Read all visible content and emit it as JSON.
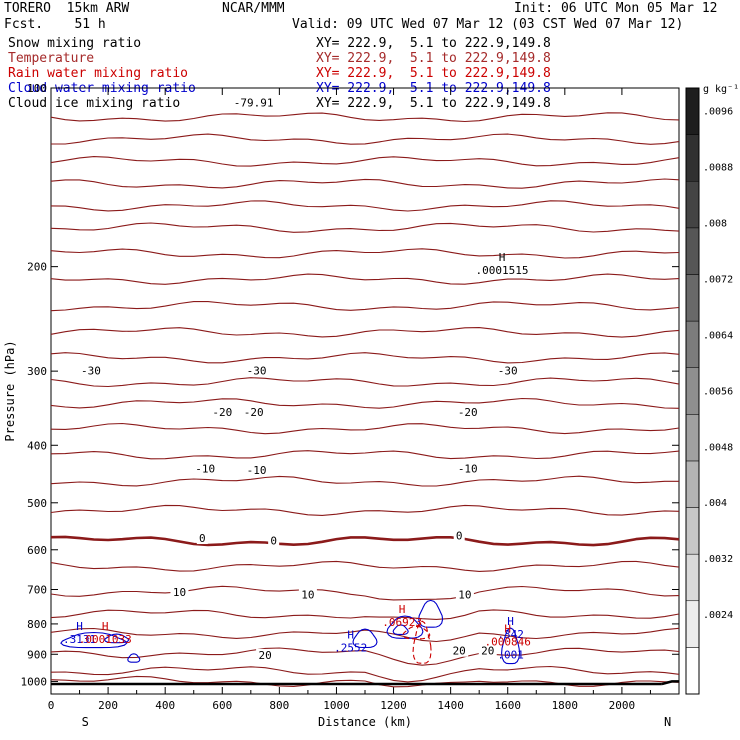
{
  "header": {
    "model": "TORERO  15km ARW",
    "forecast": "Fcst.    51 h",
    "center": "NCAR/MMM",
    "init": "Init: 06 UTC Mon 05 Mar 12",
    "valid": "Valid: 09 UTC Wed 07 Mar 12 (03 CST Wed 07 Mar 12)"
  },
  "fields": [
    {
      "name": "Snow mixing ratio",
      "xy": "XY= 222.9,  5.1 to 222.9,149.8",
      "color": "#000000"
    },
    {
      "name": "Temperature",
      "xy": "XY= 222.9,  5.1 to 222.9,149.8",
      "color": "#a52a2a"
    },
    {
      "name": "Rain water mixing ratio",
      "xy": "XY= 222.9,  5.1 to 222.9,149.8",
      "color": "#cc0000"
    },
    {
      "name": "Cloud water mixing ratio",
      "xy": "XY= 222.9,  5.1 to 222.9,149.8",
      "color": "#0000cc"
    },
    {
      "name": "Cloud ice mixing ratio",
      "xy": "XY= 222.9,  5.1 to 222.9,149.8",
      "color": "#000000"
    }
  ],
  "colorbar": {
    "unit": "g kg⁻¹",
    "ticks": [
      ".0024",
      ".0032",
      ".004",
      ".0048",
      ".0056",
      ".0064",
      ".0072",
      ".008",
      ".0088",
      ".0096"
    ]
  },
  "chart_data": {
    "type": "contour cross-section",
    "xlabel": "Distance (km)",
    "ylabel": "Pressure (hPa)",
    "x_ticks": [
      "0",
      "200",
      "400",
      "600",
      "800",
      "1000",
      "1200",
      "1400",
      "1600",
      "1800",
      "2000"
    ],
    "y_ticks": [
      "100",
      "200",
      "300",
      "400",
      "500",
      "600",
      "700",
      "800",
      "900",
      "1000"
    ],
    "xlim": [
      0,
      2200
    ],
    "ylim": [
      1050,
      100
    ],
    "y_scale": "log",
    "end_labels": {
      "left": "S",
      "right": "N"
    },
    "temperature_contour_labels": [
      {
        "text": "-79.91",
        "x": 710,
        "p": 107
      },
      {
        "text": "-30",
        "x": 140,
        "p": 303
      },
      {
        "text": "-30",
        "x": 720,
        "p": 303
      },
      {
        "text": "-30",
        "x": 1600,
        "p": 303
      },
      {
        "text": "-20",
        "x": 600,
        "p": 356
      },
      {
        "text": "-20",
        "x": 710,
        "p": 356
      },
      {
        "text": "-20",
        "x": 1460,
        "p": 356
      },
      {
        "text": "-10",
        "x": 540,
        "p": 443
      },
      {
        "text": "-10",
        "x": 720,
        "p": 445
      },
      {
        "text": "-10",
        "x": 1460,
        "p": 443
      },
      {
        "text": "0",
        "x": 530,
        "p": 580
      },
      {
        "text": "0",
        "x": 780,
        "p": 585
      },
      {
        "text": "0",
        "x": 1430,
        "p": 574
      },
      {
        "text": "10",
        "x": 450,
        "p": 715
      },
      {
        "text": "10",
        "x": 900,
        "p": 722
      },
      {
        "text": "10",
        "x": 1450,
        "p": 722
      },
      {
        "text": "20",
        "x": 750,
        "p": 913
      },
      {
        "text": "20",
        "x": 1430,
        "p": 898
      },
      {
        "text": "20",
        "x": 1530,
        "p": 898
      }
    ],
    "highs": [
      {
        "label": "H",
        "value": ".0001515",
        "x": 1580,
        "p": 205,
        "field": "Snow mixing ratio"
      },
      {
        "label": "H",
        "value": ".3131",
        "x": 100,
        "p": 858,
        "field": "Cloud water mixing ratio"
      },
      {
        "label": "H",
        "value": ".0001033",
        "x": 190,
        "p": 858,
        "field": "Rain water mixing ratio"
      },
      {
        "label": "H",
        "value": ".2552",
        "x": 1050,
        "p": 887,
        "field": "Cloud water mixing ratio"
      },
      {
        "label": "H",
        "value": ".06923",
        "x": 1230,
        "p": 803,
        "field": "Rain water mixing ratio"
      },
      {
        "label": "H",
        "value": ".342",
        "x": 1610,
        "p": 842,
        "field": "Cloud water mixing ratio"
      },
      {
        "label": "H",
        "value": ".000846",
        "x": 1600,
        "p": 867,
        "field": "Rain water mixing ratio"
      },
      {
        "label": "",
        "value": ".001",
        "x": 1610,
        "p": 911,
        "field": "Cloud water mixing ratio"
      }
    ]
  }
}
